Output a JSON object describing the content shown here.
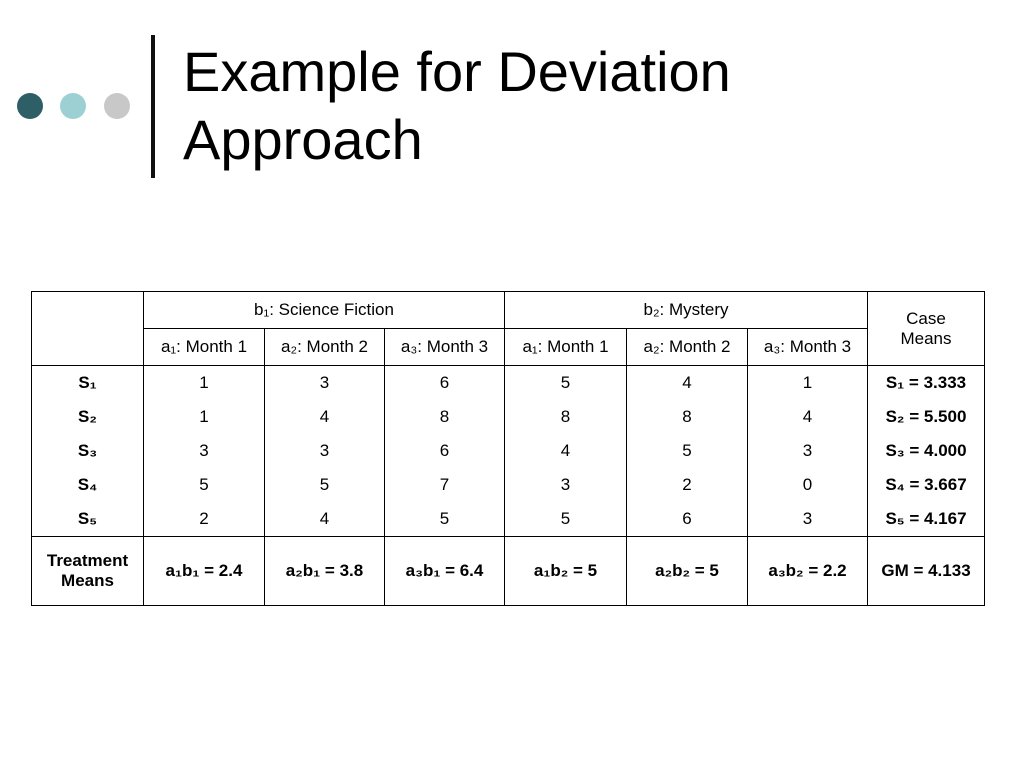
{
  "header": {
    "title": "Example for Deviation Approach"
  },
  "table": {
    "group_headers": [
      "b₁: Science Fiction",
      "b₂: Mystery"
    ],
    "case_means_header": "Case Means",
    "column_headers": [
      "a₁: Month 1",
      "a₂: Month 2",
      "a₃: Month 3",
      "a₁: Month 1",
      "a₂: Month 2",
      "a₃: Month 3"
    ],
    "rows": [
      [
        "S₁",
        1,
        3,
        6,
        5,
        4,
        1,
        "S₁ = 3.333"
      ],
      [
        "S₂",
        1,
        4,
        8,
        8,
        8,
        4,
        "S₂ = 5.500"
      ],
      [
        "S₃",
        3,
        3,
        6,
        4,
        5,
        3,
        "S₃ = 4.000"
      ],
      [
        "S₄",
        5,
        5,
        7,
        3,
        2,
        0,
        "S₄ = 3.667"
      ],
      [
        "S₅",
        2,
        4,
        5,
        5,
        6,
        3,
        "S₅ = 4.167"
      ]
    ],
    "footer": [
      "Treatment Means",
      "a₁b₁ = 2.4",
      "a₂b₁ = 3.8",
      "a₃b₁ = 6.4",
      "a₁b₂ = 5",
      "a₂b₂ = 5",
      "a₃b₂ = 2.2",
      "GM = 4.133"
    ]
  }
}
